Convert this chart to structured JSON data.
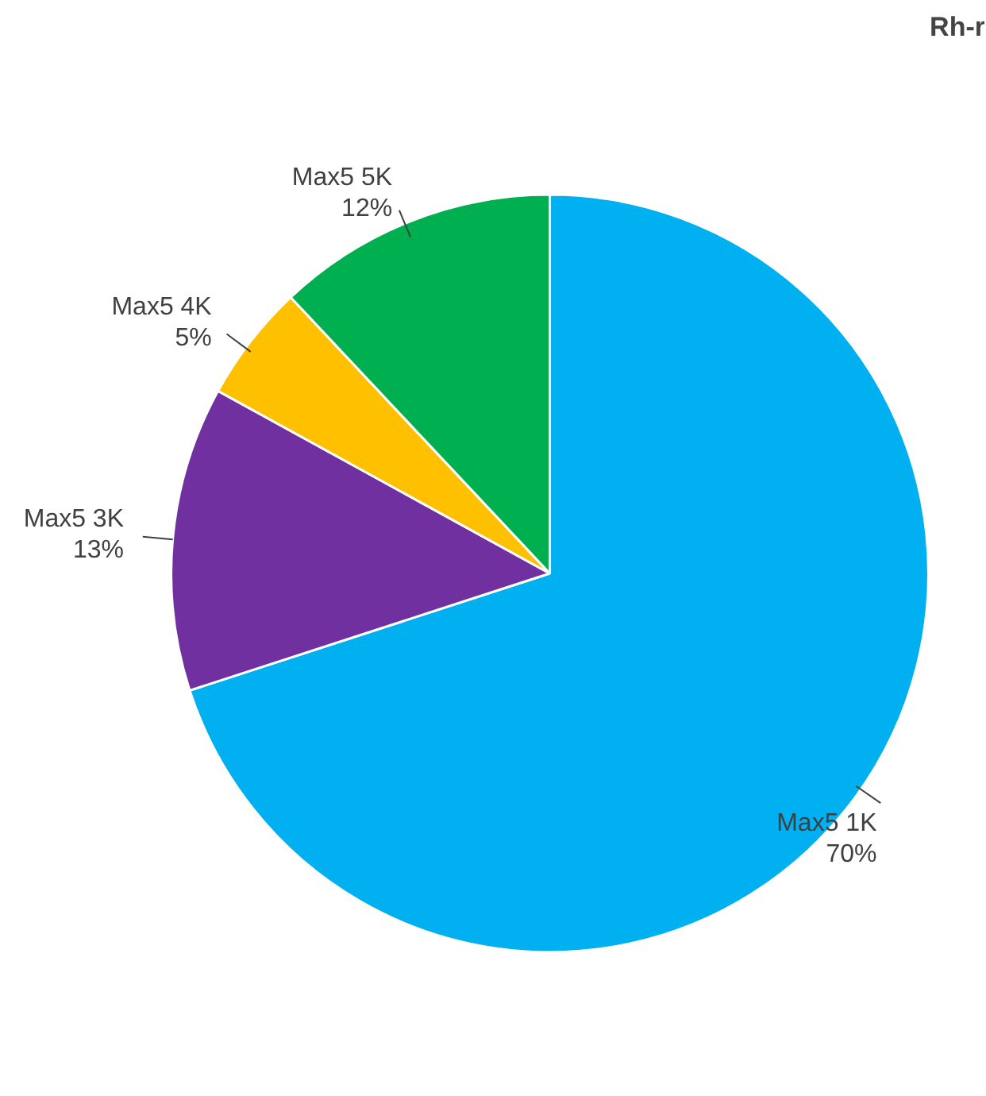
{
  "chart_data": {
    "type": "pie",
    "title": "Rh-r",
    "categories": [
      "Max5 1K",
      "Max5 3K",
      "Max5 4K",
      "Max5 5K"
    ],
    "values": [
      70,
      13,
      5,
      12
    ],
    "value_labels": [
      "70%",
      "13%",
      "5%",
      "12%"
    ],
    "colors": [
      "#00b0f0",
      "#7030a0",
      "#ffc000",
      "#00b050"
    ],
    "legend": false
  }
}
